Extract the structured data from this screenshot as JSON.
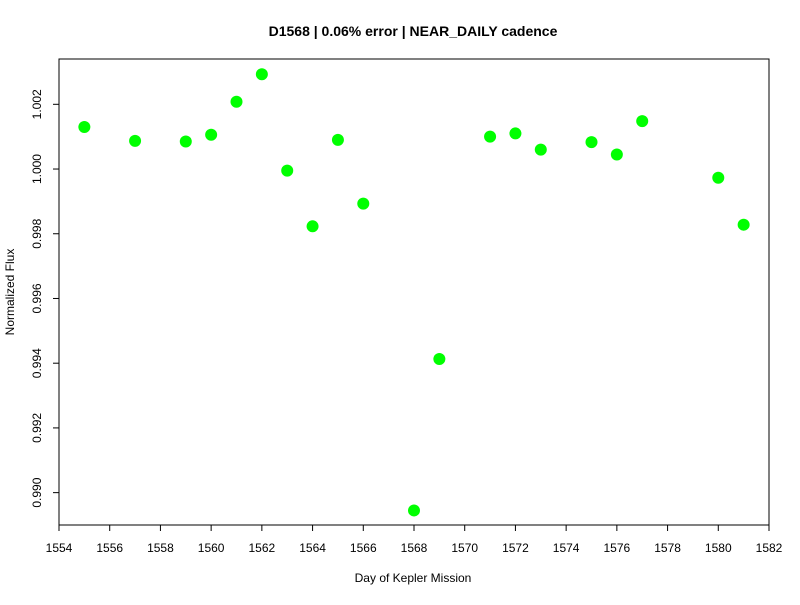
{
  "chart_data": {
    "type": "scatter",
    "title": "D1568 | 0.06% error | NEAR_DAILY cadence",
    "xlabel": "Day of Kepler Mission",
    "ylabel": "Normalized Flux",
    "xlim": [
      1554,
      1582
    ],
    "ylim": [
      0.989,
      1.0034
    ],
    "x_ticks": [
      1554,
      1556,
      1558,
      1560,
      1562,
      1564,
      1566,
      1568,
      1570,
      1572,
      1574,
      1576,
      1578,
      1580,
      1582
    ],
    "y_ticks": [
      0.99,
      0.992,
      0.994,
      0.996,
      0.998,
      1.0,
      1.002
    ],
    "x_tick_labels": [
      "1554",
      "1556",
      "1558",
      "1560",
      "1562",
      "1564",
      "1566",
      "1568",
      "1570",
      "1572",
      "1574",
      "1576",
      "1578",
      "1580",
      "1582"
    ],
    "y_tick_labels": [
      "0.990",
      "0.992",
      "0.994",
      "0.996",
      "0.998",
      "1.000",
      "1.002"
    ],
    "grid": false,
    "marker_color": "#00ff00",
    "series": [
      {
        "x": [
          1555,
          1557,
          1559,
          1560,
          1561,
          1562,
          1563,
          1564,
          1565,
          1566,
          1568,
          1569,
          1571,
          1572,
          1573,
          1575,
          1576,
          1577,
          1580,
          1581
        ],
        "y": [
          1.0013,
          1.00087,
          1.00085,
          1.00106,
          1.00208,
          1.00293,
          0.99995,
          0.99823,
          1.0009,
          0.99893,
          0.98945,
          0.99413,
          1.001,
          1.0011,
          1.0006,
          1.00083,
          1.00045,
          1.00148,
          0.99973,
          0.99828
        ]
      }
    ]
  }
}
